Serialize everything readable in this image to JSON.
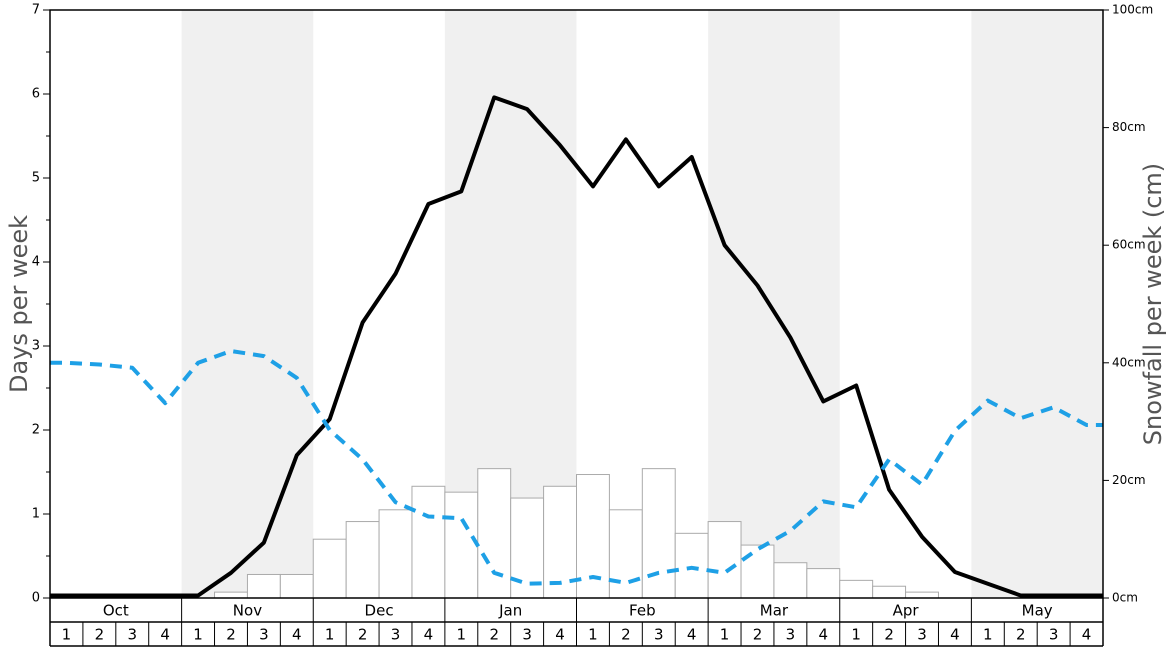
{
  "chart_data": {
    "type": "bar",
    "y_left_label": "Days per week",
    "y_right_label": "Snowfall per week (cm)",
    "y_left_ticks": [
      "0",
      "1",
      "2",
      "3",
      "4",
      "5",
      "6",
      "7"
    ],
    "y_right_ticks": [
      "0cm",
      "20cm",
      "40cm",
      "60cm",
      "80cm",
      "100cm"
    ],
    "y_left_range": [
      0,
      7
    ],
    "y_right_range": [
      0,
      100
    ],
    "months": [
      "Oct",
      "Nov",
      "Dec",
      "Jan",
      "Feb",
      "Mar",
      "Apr",
      "May"
    ],
    "weeks": [
      "1",
      "2",
      "3",
      "4"
    ],
    "shaded_months": [
      "Nov",
      "Jan",
      "Mar",
      "May"
    ],
    "series": [
      {
        "type": "bar",
        "axis": "right",
        "color": "#ffffff",
        "values": [
          0,
          0,
          0,
          0,
          0,
          1,
          4,
          4,
          10,
          13,
          15,
          19,
          18,
          22,
          17,
          19,
          21,
          15,
          22,
          11,
          13,
          9,
          6,
          5,
          3,
          2,
          1,
          0,
          0,
          0,
          0,
          0
        ]
      },
      {
        "type": "line",
        "axis": "left",
        "style": "solid",
        "color": "#000000",
        "values": [
          0.03,
          0.03,
          0.03,
          0.03,
          0.03,
          0.3,
          0.66,
          1.7,
          2.13,
          3.28,
          3.86,
          4.69,
          4.84,
          5.96,
          5.82,
          5.39,
          4.9,
          5.46,
          4.9,
          5.25,
          4.2,
          3.72,
          3.1,
          2.34,
          2.53,
          1.29,
          0.73,
          0.31,
          0.17,
          0.03,
          0.03,
          0.03
        ]
      },
      {
        "type": "line",
        "axis": "left",
        "style": "dashed",
        "color": "#1ea0e6",
        "values": [
          2.8,
          2.78,
          2.74,
          2.32,
          2.8,
          2.94,
          2.88,
          2.62,
          2.0,
          1.65,
          1.14,
          0.97,
          0.95,
          0.3,
          0.17,
          0.18,
          0.25,
          0.18,
          0.3,
          0.36,
          0.3,
          0.58,
          0.8,
          1.15,
          1.08,
          1.65,
          1.35,
          1.99,
          2.35,
          2.14,
          2.27,
          2.06
        ]
      }
    ],
    "grid": false,
    "legend": "none"
  }
}
